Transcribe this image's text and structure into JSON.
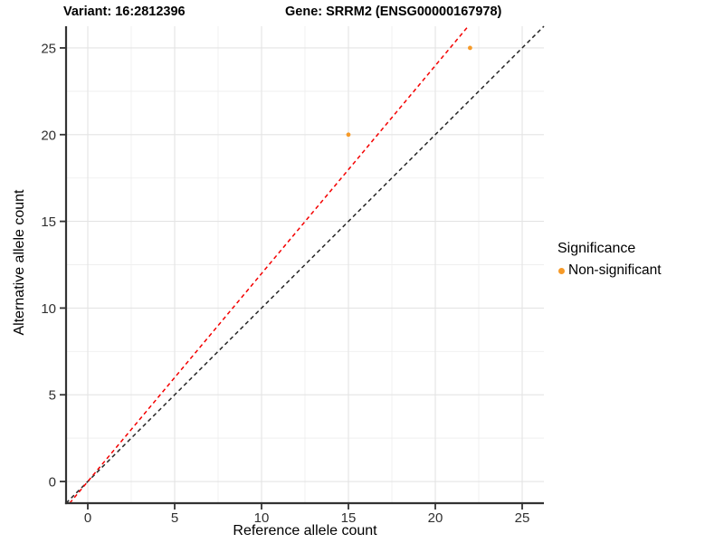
{
  "figure": {
    "title_variant": "Variant: 16:2812396",
    "title_gene": "Gene: SRRM2 (ENSG00000167978)"
  },
  "chart_data": {
    "type": "scatter",
    "title": "",
    "xlabel": "Reference allele count",
    "ylabel": "Alternative allele count",
    "xlim": [
      -1.25,
      26.25
    ],
    "ylim": [
      -1.25,
      26.25
    ],
    "x_ticks": [
      0,
      5,
      10,
      15,
      20,
      25
    ],
    "y_ticks": [
      0,
      5,
      10,
      15,
      20,
      25
    ],
    "grid": "major and minor gridlines, light gray on white panel",
    "series": [
      {
        "name": "Non-significant",
        "color": "#F69A28",
        "marker": "circle",
        "points": [
          {
            "x": 15,
            "y": 20
          },
          {
            "x": 22,
            "y": 25
          }
        ]
      }
    ],
    "reference_lines": [
      {
        "name": "identity-line-y-equals-x",
        "slope": 1.0,
        "intercept": 0,
        "color": "#262626",
        "style": "dashed"
      },
      {
        "name": "allelic-ratio-fit-line",
        "slope": 1.199,
        "intercept": 0,
        "color": "#F40000",
        "style": "dashed"
      }
    ],
    "legend": {
      "title": "Significance",
      "position": "right",
      "entries": [
        {
          "label": "Non-significant",
          "color": "#F69A28",
          "marker": "circle"
        }
      ]
    }
  },
  "style": {
    "axis_line_color": "#333333",
    "tick_label_color": "#303030",
    "major_grid_color": "#E4E4E4",
    "minor_grid_color": "#EFEFEF"
  }
}
